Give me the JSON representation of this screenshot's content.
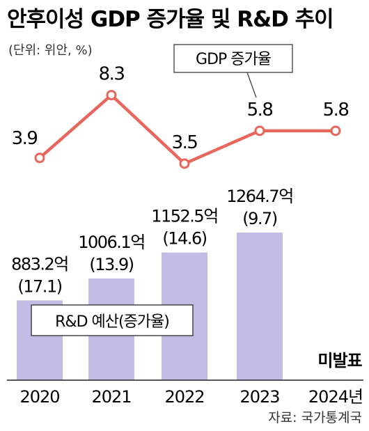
{
  "title": "안후이성 GDP 증가율 및 R&D 추이",
  "unit_note": "(단위: 위안, %)",
  "source": "자료: 국가통계국",
  "colors": {
    "line": "#e8675d",
    "bar": "#c3bde6",
    "text": "#1a1a1a"
  },
  "chart_data": [
    {
      "type": "line",
      "categories": [
        "2020",
        "2021",
        "2022",
        "2023",
        "2024년"
      ],
      "series": [
        {
          "name": "GDP 증가율",
          "values": [
            3.9,
            8.3,
            3.5,
            5.8,
            5.8
          ]
        }
      ],
      "data_labels": [
        "3.9",
        "8.3",
        "3.5",
        "5.8",
        "5.8"
      ]
    },
    {
      "type": "bar",
      "categories": [
        "2020",
        "2021",
        "2022",
        "2023",
        "2024년"
      ],
      "series": [
        {
          "name": "R&D 예산(증가율)",
          "values": [
            883.2,
            1006.1,
            1152.5,
            1264.7,
            null
          ],
          "growth": [
            17.1,
            13.9,
            14.6,
            9.7,
            null
          ]
        }
      ],
      "value_labels": [
        "883.2억",
        "1006.1억",
        "1152.5억",
        "1264.7억",
        "미발표"
      ],
      "growth_labels": [
        "(17.1)",
        "(13.9)",
        "(14.6)",
        "(9.7)",
        ""
      ]
    }
  ]
}
